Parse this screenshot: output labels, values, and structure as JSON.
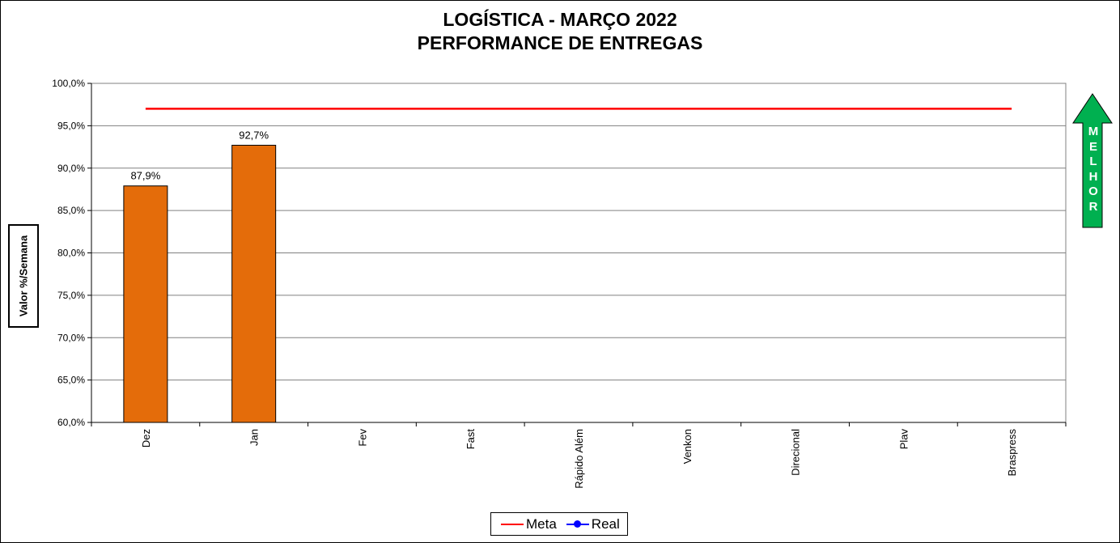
{
  "chart_data": {
    "type": "bar",
    "title": "LOGÍSTICA - MARÇO 2022",
    "subtitle": "PERFORMANCE DE ENTREGAS",
    "ylabel": "Valor %/Semana",
    "xlabel": "",
    "categories": [
      "Dez",
      "Jan",
      "Fev",
      "Fast",
      "Rápido Além",
      "Venkon",
      "Direcional",
      "Plav",
      "Braspress"
    ],
    "series": [
      {
        "name": "Real",
        "type": "bar",
        "color": "#E46C0A",
        "values": [
          87.9,
          92.7,
          null,
          null,
          null,
          null,
          null,
          null,
          null
        ]
      },
      {
        "name": "Meta",
        "type": "line",
        "color": "#FF0000",
        "values": [
          97.0,
          97.0,
          97.0,
          97.0,
          97.0,
          97.0,
          97.0,
          97.0,
          97.0
        ]
      }
    ],
    "data_labels": [
      "87,9%",
      "92,7%",
      "",
      "",
      "",
      "",
      "",
      "",
      ""
    ],
    "ylim": [
      60,
      100
    ],
    "yticks": [
      60,
      65,
      70,
      75,
      80,
      85,
      90,
      95,
      100
    ],
    "ytick_labels": [
      "60,0%",
      "65,0%",
      "70,0%",
      "75,0%",
      "80,0%",
      "85,0%",
      "90,0%",
      "95,0%",
      "100,0%"
    ],
    "grid": true,
    "legend": {
      "position": "bottom",
      "entries": [
        {
          "name": "Meta",
          "color": "#FF0000",
          "marker": "none"
        },
        {
          "name": "Real",
          "color": "#0000FF",
          "marker": "circle"
        }
      ]
    },
    "indicator": {
      "text": "MELHOR",
      "letters": [
        "M",
        "E",
        "L",
        "H",
        "O",
        "R"
      ],
      "direction": "up",
      "color": "#00B050"
    }
  }
}
